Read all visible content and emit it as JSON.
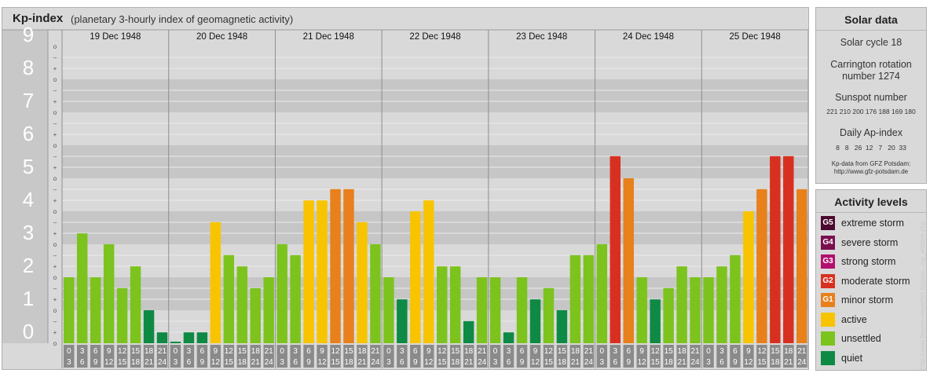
{
  "header": {
    "title": "Kp-index",
    "subtitle": "(planetary 3-hourly index of geomagnetic activity)"
  },
  "chart_data": {
    "type": "bar",
    "y_labels": [
      "0",
      "1",
      "2",
      "3",
      "4",
      "5",
      "6",
      "7",
      "8",
      "9"
    ],
    "minor_labels": [
      "–",
      "+",
      "o"
    ],
    "ylim": [
      0,
      9
    ],
    "days": [
      {
        "date": "19 Dec 1948",
        "values": [
          2,
          3.33,
          2,
          3,
          1.67,
          2.33,
          1,
          0.33
        ]
      },
      {
        "date": "20 Dec 1948",
        "values": [
          0,
          0.33,
          0.33,
          3.67,
          2.67,
          2.33,
          1.67,
          2
        ]
      },
      {
        "date": "21 Dec 1948",
        "values": [
          3,
          2.67,
          4.33,
          4.33,
          4.67,
          4.67,
          3.67,
          3
        ]
      },
      {
        "date": "22 Dec 1948",
        "values": [
          2,
          1.33,
          4,
          4.33,
          2.33,
          2.33,
          0.67,
          2
        ]
      },
      {
        "date": "23 Dec 1948",
        "values": [
          2,
          0.33,
          2,
          1.33,
          1.67,
          1,
          2.67,
          2.67
        ]
      },
      {
        "date": "24 Dec 1948",
        "values": [
          3,
          5.67,
          5,
          2,
          1.33,
          1.67,
          2.33,
          2
        ]
      },
      {
        "date": "25 Dec 1948",
        "values": [
          2,
          2.33,
          2.67,
          4,
          4.67,
          5.67,
          5.67,
          4.67
        ]
      }
    ],
    "slot_labels": [
      [
        "0",
        "3"
      ],
      [
        "3",
        "6"
      ],
      [
        "6",
        "9"
      ],
      [
        "9",
        "12"
      ],
      [
        "12",
        "15"
      ],
      [
        "15",
        "18"
      ],
      [
        "18",
        "21"
      ],
      [
        "21",
        "24"
      ]
    ]
  },
  "solar": {
    "heading": "Solar data",
    "cycle": "Solar cycle 18",
    "carrington_line1": "Carrington rotation",
    "carrington_line2": "number 1274",
    "sunspot_heading": "Sunspot number",
    "sunspot_values": "221 210 200 176 188 169 180",
    "ap_heading": "Daily Ap-index",
    "ap_values": "8   8   26  12   7   20  33",
    "source_line1": "Kp-data from GFZ Potsdam:",
    "source_line2": "http://www.gfz-potsdam.de"
  },
  "levels": {
    "heading": "Activity levels",
    "items": [
      {
        "code": "G5",
        "label": "extreme storm",
        "color": "#4b0a2e"
      },
      {
        "code": "G4",
        "label": "severe storm",
        "color": "#7a0f4e"
      },
      {
        "code": "G3",
        "label": "strong storm",
        "color": "#b2106e"
      },
      {
        "code": "G2",
        "label": "moderate storm",
        "color": "#d83020"
      },
      {
        "code": "G1",
        "label": "minor storm",
        "color": "#e8801c"
      },
      {
        "code": "",
        "label": "active",
        "color": "#f8c400"
      },
      {
        "code": "",
        "label": "unsettled",
        "color": "#7cc31e"
      },
      {
        "code": "",
        "label": "quiet",
        "color": "#0e8a44"
      }
    ]
  },
  "credit": "http://www.fleurne-neuerfort.lu/pura.../op_archive.php"
}
